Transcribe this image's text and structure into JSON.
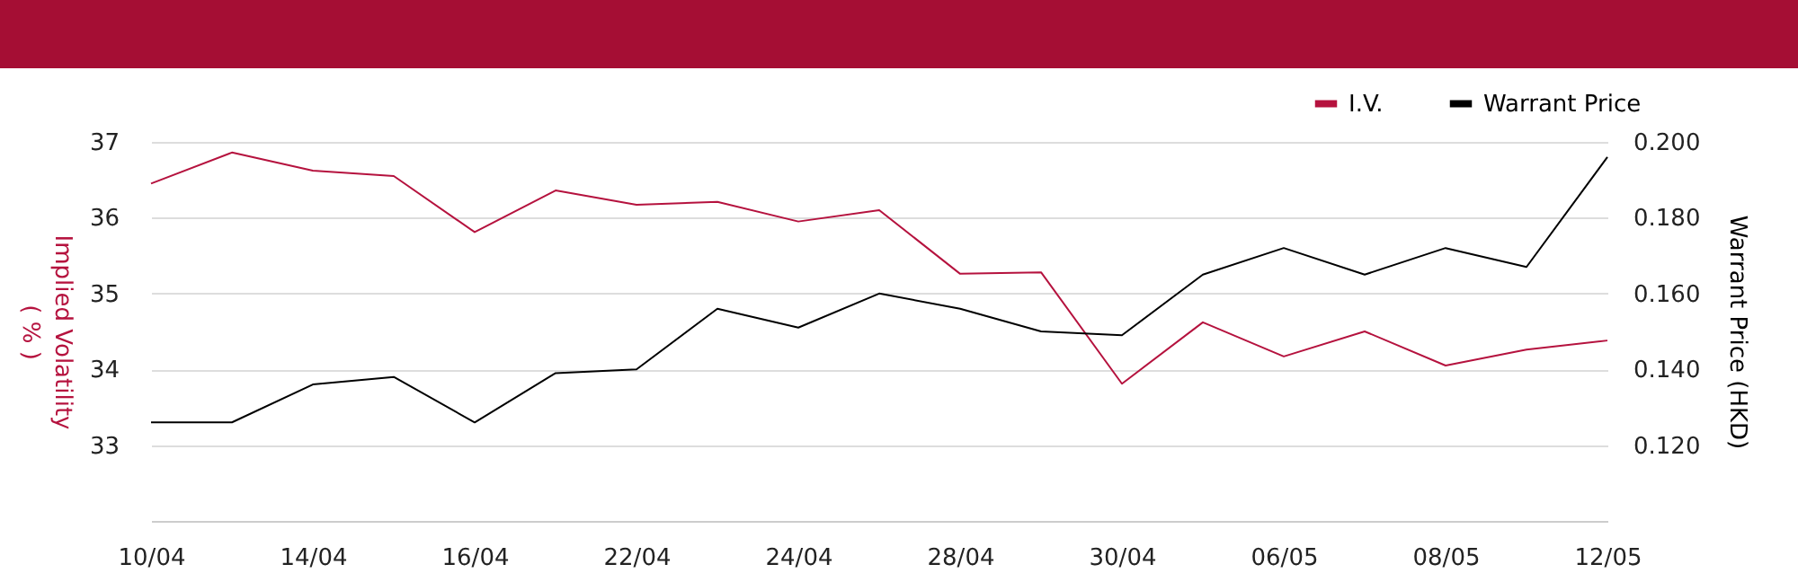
{
  "chart_data": {
    "type": "line",
    "categories": [
      "10/04",
      null,
      "14/04",
      null,
      "16/04",
      null,
      "22/04",
      null,
      "24/04",
      null,
      "28/04",
      null,
      "30/04",
      null,
      "06/05",
      null,
      "08/05",
      null,
      "12/05"
    ],
    "series": [
      {
        "name": "I.V.",
        "color": "#b5123e",
        "values": [
          36.45,
          36.86,
          36.62,
          36.55,
          35.81,
          36.36,
          36.17,
          36.21,
          35.95,
          36.1,
          35.26,
          35.28,
          33.81,
          34.62,
          34.17,
          34.5,
          34.05,
          34.26,
          34.38
        ]
      },
      {
        "name": "Warrant Price",
        "color": "#000000",
        "axis": "y2",
        "values": [
          0.126,
          0.126,
          0.136,
          0.138,
          0.126,
          0.139,
          0.14,
          0.156,
          0.151,
          0.16,
          0.156,
          0.15,
          0.149,
          0.165,
          0.172,
          0.165,
          0.172,
          0.167,
          0.196
        ]
      }
    ],
    "ylabel": "Implied Volatility\n( % )",
    "y2label": "Warrant Price (HKD)",
    "ylim": [
      32,
      37
    ],
    "yticks": [
      33,
      34,
      35,
      36,
      37
    ],
    "y2lim": [
      0.1,
      0.2
    ],
    "y2ticks": [
      {
        "value": 0.12,
        "label": "0.120"
      },
      {
        "value": 0.14,
        "label": "0.140"
      },
      {
        "value": 0.16,
        "label": "0.160"
      },
      {
        "value": 0.18,
        "label": "0.180"
      },
      {
        "value": 0.2,
        "label": "0.200"
      }
    ],
    "grid": "y",
    "legend": "top right",
    "marker": "none",
    "line_style": "solid"
  }
}
